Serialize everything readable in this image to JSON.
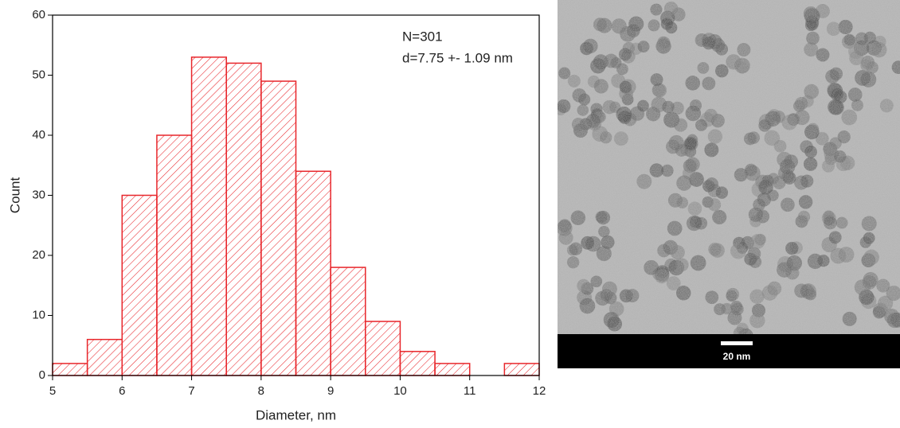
{
  "chart_data": {
    "type": "histogram",
    "xlabel": "Diameter, nm",
    "ylabel": "Count",
    "annotations": [
      "N=301",
      "d=7.75 +- 1.09 nm"
    ],
    "bins": [
      5,
      5.5,
      6,
      6.5,
      7,
      7.5,
      8,
      8.5,
      9,
      9.5,
      10,
      10.5,
      11,
      11.5,
      12
    ],
    "counts": [
      2,
      6,
      30,
      40,
      53,
      52,
      49,
      34,
      18,
      9,
      4,
      2,
      0,
      2
    ],
    "color": "#e8262b",
    "xlim": [
      5,
      12
    ],
    "xticks": [
      5,
      6,
      7,
      8,
      9,
      10,
      11,
      12
    ],
    "ylim": [
      0,
      60
    ],
    "yticks": [
      0,
      10,
      20,
      30,
      40,
      50,
      60
    ]
  },
  "image": {
    "scale_bar_label": "20 nm"
  }
}
